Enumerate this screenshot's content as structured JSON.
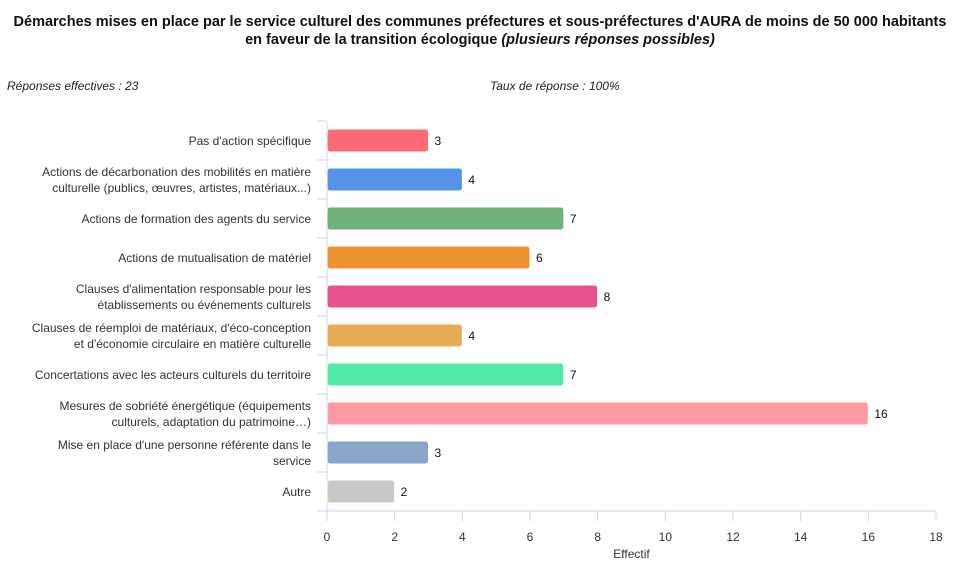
{
  "title_main": "Démarches mises en place par le service culturel des communes préfectures et sous-préfectures d'AURA de moins de 50 000 habitants",
  "title_line2": "en faveur de la transition écologique",
  "title_italic": "(plusieurs réponses possibles)",
  "responses_label": "Réponses effectives : 23",
  "rate_label": "Taux de réponse : 100%",
  "chart_data": {
    "type": "bar",
    "orientation": "horizontal",
    "title": "Démarches mises en place par le service culturel des communes préfectures et sous-préfectures d'AURA de moins de 50 000 habitants en faveur de la transition écologique (plusieurs réponses possibles)",
    "xlabel": "Effectif",
    "ylabel": "",
    "xlim": [
      0,
      18
    ],
    "xticks": [
      "0",
      "2",
      "4",
      "6",
      "8",
      "10",
      "12",
      "14",
      "16",
      "18"
    ],
    "categories": [
      [
        "Pas d'action spécifique"
      ],
      [
        "Actions de décarbonation des mobilités en matière",
        "culturelle (publics, œuvres, artistes, matériaux...)"
      ],
      [
        "Actions de formation des agents du service"
      ],
      [
        "Actions de mutualisation de matériel"
      ],
      [
        "Clauses d'alimentation responsable pour les",
        "établissements ou événements culturels"
      ],
      [
        "Clauses de réemploi de matériaux, d'éco-conception",
        "et d'économie circulaire en matière culturelle"
      ],
      [
        "Concertations avec les acteurs culturels du territoire"
      ],
      [
        "Mesures de sobriété énergétique (équipements",
        "culturels, adaptation du patrimoine…)"
      ],
      [
        "Mise en place d'une personne référente dans le",
        "service"
      ],
      [
        "Autre"
      ]
    ],
    "values": [
      3,
      4,
      7,
      6,
      8,
      4,
      7,
      16,
      3,
      2
    ],
    "colors": [
      "#fd6b74",
      "#5592e8",
      "#6fb27c",
      "#ed9332",
      "#e8548e",
      "#e9ac56",
      "#53e9a9",
      "#fd9aa3",
      "#8ba4c9",
      "#c8c8c8"
    ],
    "grid": false,
    "legend": "none"
  }
}
